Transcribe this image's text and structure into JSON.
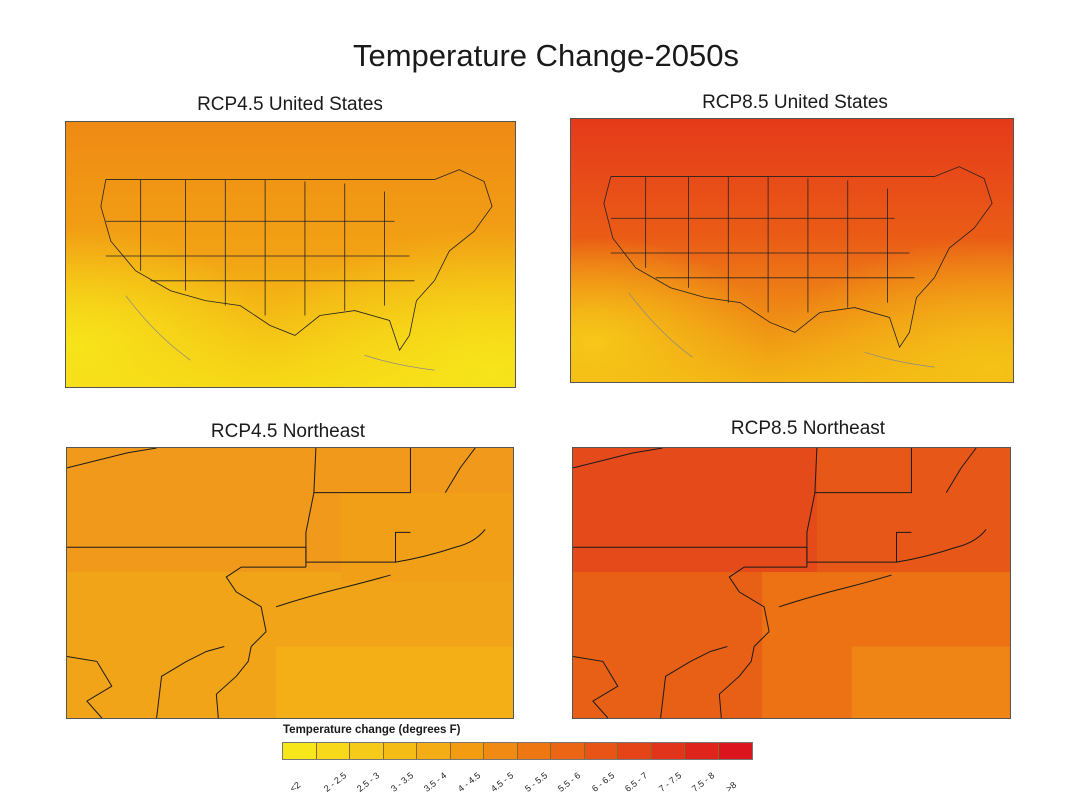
{
  "title": "Temperature Change-2050s",
  "panels": [
    {
      "id": "rcp45-us",
      "title": "RCP4.5 United States"
    },
    {
      "id": "rcp85-us",
      "title": "RCP8.5 United States"
    },
    {
      "id": "rcp45-ne",
      "title": "RCP4.5 Northeast"
    },
    {
      "id": "rcp85-ne",
      "title": "RCP8.5 Northeast"
    }
  ],
  "legend": {
    "title": "Temperature change (degrees F)",
    "bins": [
      {
        "label": "<2",
        "color": "#f7e61a"
      },
      {
        "label": "2 - 2.5",
        "color": "#f7d81a"
      },
      {
        "label": "2.5 - 3",
        "color": "#f6ca18"
      },
      {
        "label": "3 - 3.5",
        "color": "#f5bc16"
      },
      {
        "label": "3.5 - 4",
        "color": "#f4ad14"
      },
      {
        "label": "4 - 4.5",
        "color": "#f39c12"
      },
      {
        "label": "4.5 - 5",
        "color": "#f08a12"
      },
      {
        "label": "5 - 5.5",
        "color": "#ee7712"
      },
      {
        "label": "5.5 - 6",
        "color": "#eb6514"
      },
      {
        "label": "6 - 6.5",
        "color": "#e85416"
      },
      {
        "label": "6.5 - 7",
        "color": "#e54418"
      },
      {
        "label": "7 - 7.5",
        "color": "#e2341a"
      },
      {
        "label": "7.5 - 8",
        "color": "#df241c"
      },
      {
        "label": ">8",
        "color": "#dc141e"
      }
    ]
  }
}
